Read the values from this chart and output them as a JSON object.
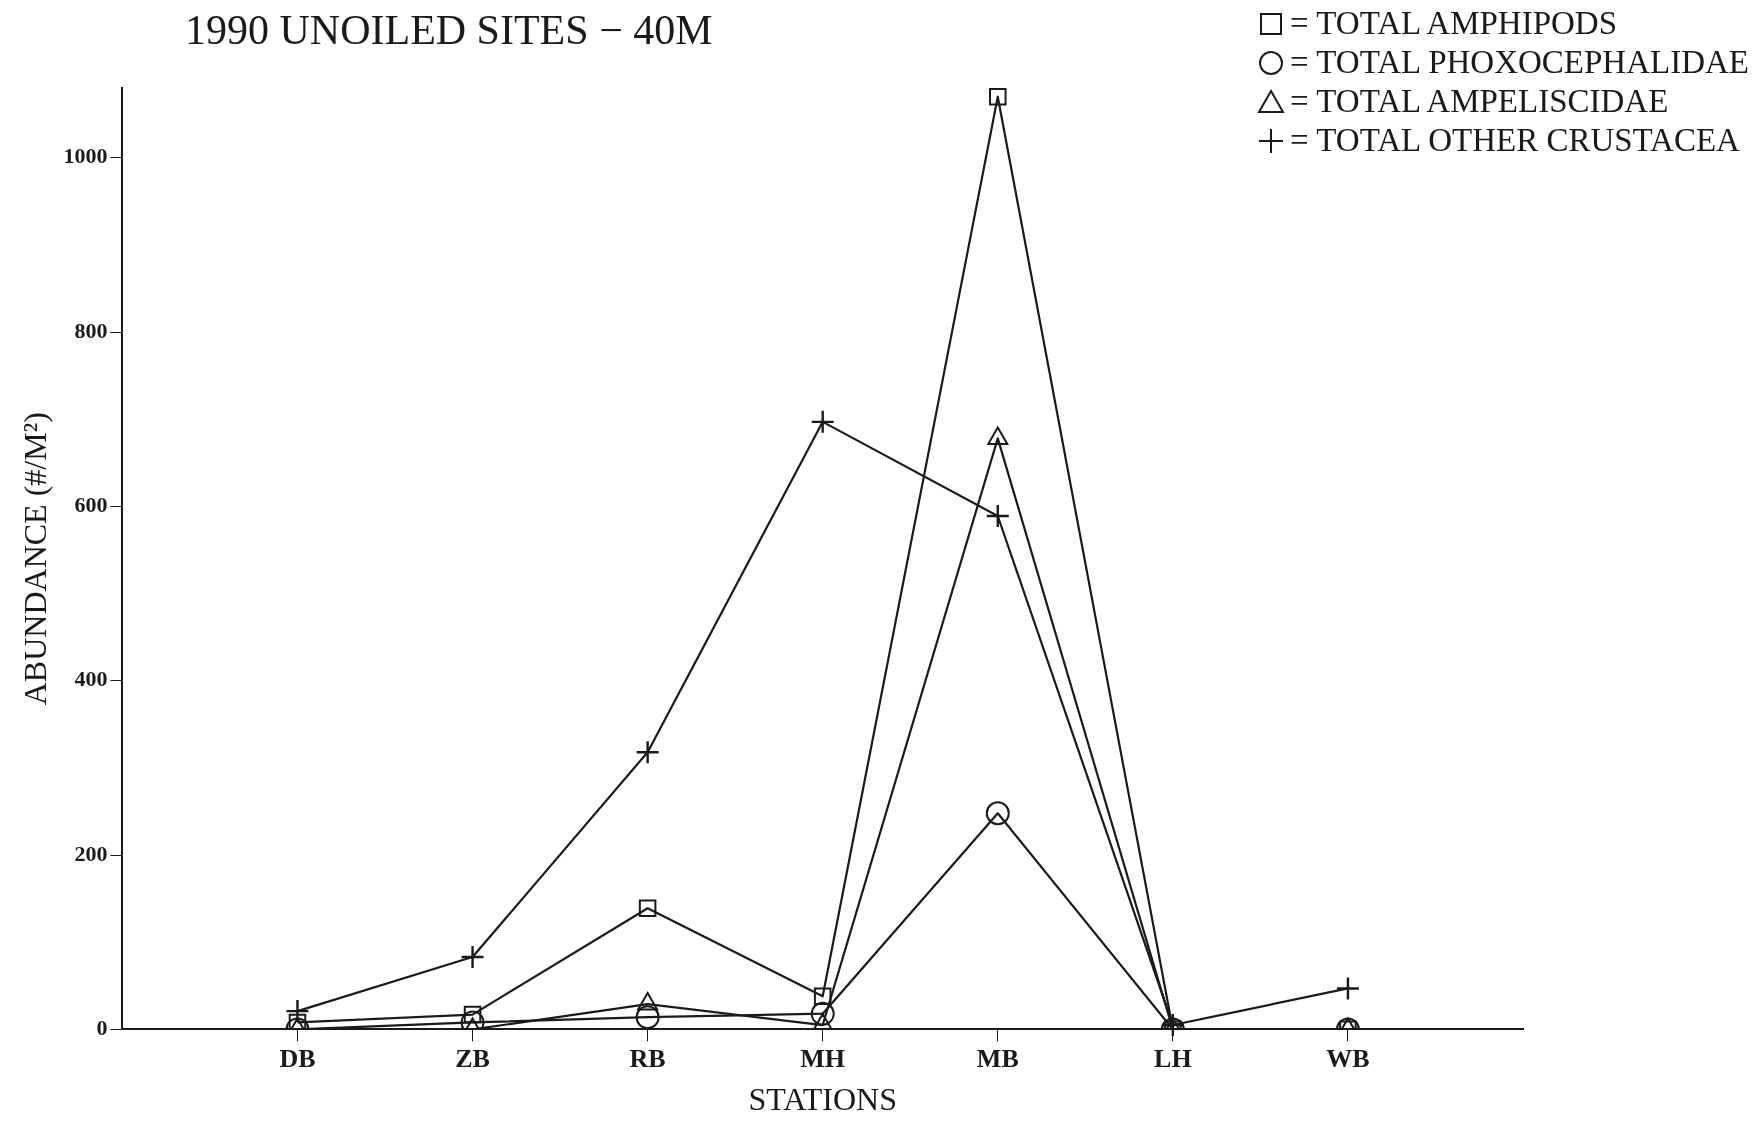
{
  "chart_data": {
    "type": "line",
    "title": "1990 UNOILED SITES − 40M",
    "xlabel": "STATIONS",
    "ylabel": "ABUNDANCE (#/M²)",
    "categories": [
      "DB",
      "ZB",
      "RB",
      "MH",
      "MB",
      "LH",
      "WB"
    ],
    "ylim": [
      0,
      1080
    ],
    "yticks": [
      0,
      200,
      400,
      600,
      800,
      1000
    ],
    "grid": false,
    "legend": "top right",
    "line_style": "solid",
    "series": [
      {
        "name": "= TOTAL AMPHIPODS",
        "color": "#1a1a1a",
        "marker": "square",
        "values": [
          8,
          17,
          139,
          38,
          1070,
          0,
          0
        ]
      },
      {
        "name": "= TOTAL PHOXOCEPHALIDAE",
        "color": "#1a1a1a",
        "marker": "circle",
        "values": [
          0,
          8,
          14,
          18,
          248,
          0,
          0
        ]
      },
      {
        "name": "= TOTAL AMPELISCIDAE",
        "color": "#1a1a1a",
        "marker": "triangle",
        "values": [
          0,
          0,
          29,
          5,
          678,
          0,
          0
        ]
      },
      {
        "name": "= TOTAL OTHER CRUSTACEA",
        "color": "#1a1a1a",
        "marker": "cross",
        "values": [
          21,
          83,
          318,
          697,
          589,
          5,
          47
        ]
      }
    ]
  }
}
